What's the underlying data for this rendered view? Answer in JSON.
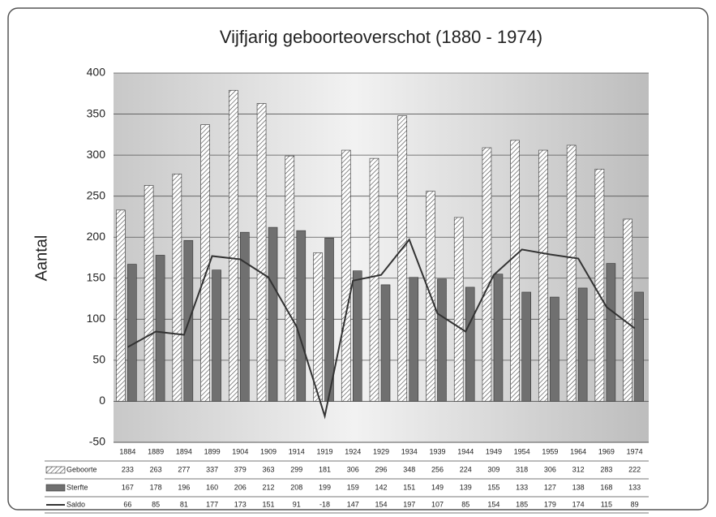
{
  "chart_data": {
    "type": "bar",
    "title": "Vijfjarig geboorteoverschot  (1880 - 1974)",
    "y_label": "Aantal",
    "categories": [
      "1884",
      "1889",
      "1894",
      "1899",
      "1904",
      "1909",
      "1914",
      "1919",
      "1924",
      "1929",
      "1934",
      "1939",
      "1944",
      "1949",
      "1954",
      "1959",
      "1964",
      "1969",
      "1974"
    ],
    "series": [
      {
        "name": "Geboorte",
        "type": "bar",
        "color": "#ffffff",
        "values": [
          233,
          263,
          277,
          337,
          379,
          363,
          299,
          181,
          306,
          296,
          348,
          256,
          224,
          309,
          318,
          306,
          312,
          283,
          222
        ]
      },
      {
        "name": "Sterfte",
        "type": "bar",
        "color": "#707070",
        "values": [
          167,
          178,
          196,
          160,
          206,
          212,
          208,
          199,
          159,
          142,
          151,
          149,
          139,
          155,
          133,
          127,
          138,
          168,
          133
        ]
      },
      {
        "name": "Saldo",
        "type": "line",
        "color": "#333333",
        "values": [
          66,
          85,
          81,
          177,
          173,
          151,
          91,
          -18,
          147,
          154,
          197,
          107,
          85,
          154,
          185,
          179,
          174,
          115,
          89
        ]
      }
    ],
    "ylim": [
      -50,
      400
    ],
    "yticks": [
      -50,
      0,
      50,
      100,
      150,
      200,
      250,
      300,
      350,
      400
    ],
    "grid": true
  }
}
